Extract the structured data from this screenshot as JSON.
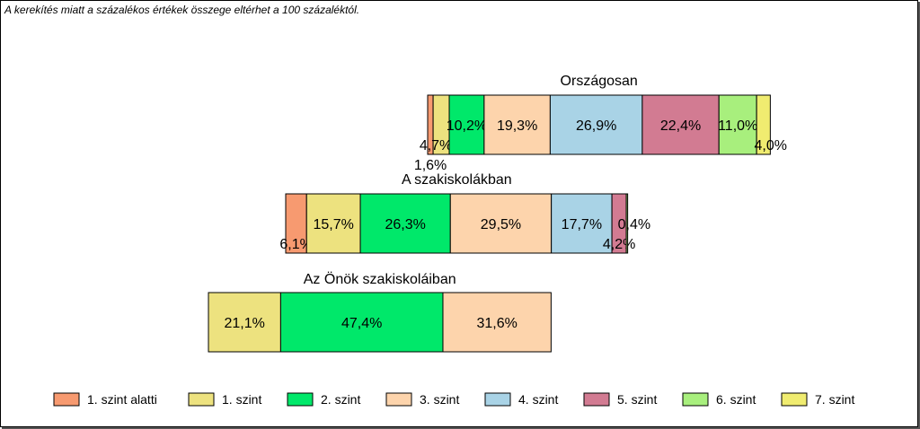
{
  "note": "A kerekítés miatt a százalékos értékek összege eltérhet a 100 százaléktól.",
  "chart_data": {
    "type": "bar",
    "orientation": "horizontal-stacked",
    "unit": "%",
    "legend_position": "bottom",
    "series_names": [
      "1. szint alatti",
      "1. szint",
      "2. szint",
      "3. szint",
      "4. szint",
      "5. szint",
      "6. szint",
      "7. szint"
    ],
    "colors": [
      "#f79a70",
      "#ede27f",
      "#00e86a",
      "#fdd4ac",
      "#a9d3e6",
      "#d27b92",
      "#a8ef7d",
      "#f0ec70"
    ],
    "groups": [
      {
        "name": "Országosan",
        "values": [
          1.6,
          4.7,
          10.2,
          19.3,
          26.9,
          22.4,
          11.0,
          4.0
        ],
        "labels": [
          "1,6%",
          "4,7%",
          "10,2%",
          "19,3%",
          "26,9%",
          "22,4%",
          "11,0%",
          "4,0%"
        ]
      },
      {
        "name": "A szakiskolákban",
        "values": [
          6.1,
          15.7,
          26.3,
          29.5,
          17.7,
          4.2,
          0.4,
          0.0
        ],
        "labels": [
          "6,1%",
          "15,7%",
          "26,3%",
          "29,5%",
          "17,7%",
          "4,2%",
          "0,4%",
          ""
        ]
      },
      {
        "name": "Az Önök szakiskoláiban",
        "values": [
          0,
          21.1,
          47.4,
          31.6,
          0,
          0,
          0,
          0
        ],
        "labels": [
          "",
          "21,1%",
          "47,4%",
          "31,6%",
          "",
          "",
          "",
          ""
        ]
      }
    ]
  }
}
